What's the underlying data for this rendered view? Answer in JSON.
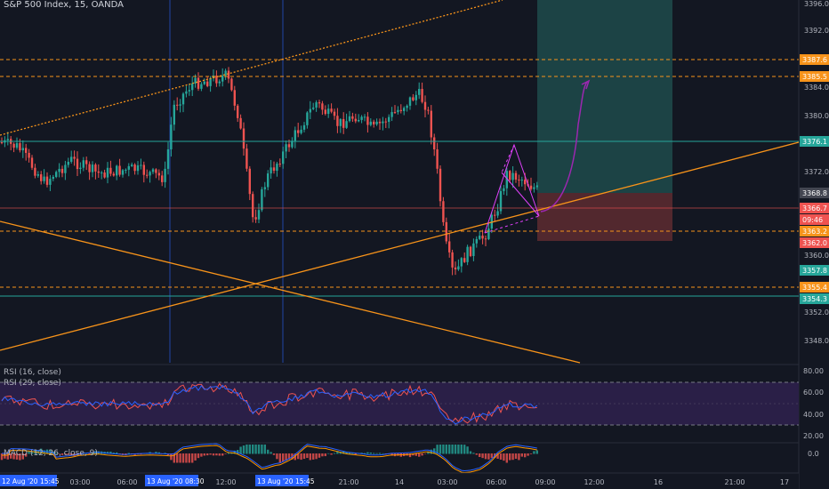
{
  "header": {
    "title": "S&P 500 Index, 15, OANDA"
  },
  "indicators": {
    "rsi16": "RSI (16, close)",
    "rsi29": "RSI (29, close)",
    "macd": "MACD (12, 26, close, 9)"
  },
  "price_axis": {
    "ticks": [
      "3396.0",
      "3392.0",
      "3384.0",
      "3380.0",
      "3372.0",
      "3360.0",
      "3352.0",
      "3348.0"
    ],
    "tags": [
      {
        "value": "3387.6",
        "color": "#f7931a"
      },
      {
        "value": "3385.5",
        "color": "#f7931a"
      },
      {
        "value": "3376.1",
        "color": "#26a69a"
      },
      {
        "value": "3368.8",
        "color": "#434651"
      },
      {
        "value": "3366.7",
        "color": "#ef5350"
      },
      {
        "value": "09:46",
        "color": "#ef5350"
      },
      {
        "value": "3363.2",
        "color": "#f7931a"
      },
      {
        "value": "3362.0",
        "color": "#ef5350"
      },
      {
        "value": "3357.8",
        "color": "#26a69a"
      },
      {
        "value": "3355.4",
        "color": "#f7931a"
      },
      {
        "value": "3354.3",
        "color": "#26a69a"
      }
    ]
  },
  "rsi_axis": {
    "ticks": [
      "80.00",
      "60.00",
      "40.00",
      "20.00"
    ]
  },
  "macd_axis": {
    "ticks": [
      "0.0"
    ]
  },
  "time_axis": {
    "labels": [
      "03:00",
      "06:00",
      "12:00",
      "21:00",
      "14",
      "03:00",
      "06:00",
      "09:00",
      "12:00",
      "16",
      "21:00",
      "17"
    ],
    "highlights": [
      "12 Aug '20  15:45",
      "13 Aug '20  08:30",
      "13 Aug '20  15:45"
    ]
  },
  "colors": {
    "background": "#131722",
    "up": "#26a69a",
    "down": "#ef5350",
    "orange": "#f7931a",
    "teal_line": "#26a69a",
    "target_zone": "#1e4b4b",
    "stop_zone": "#5a2a30",
    "pattern": "#e040fb",
    "rsi_bg": "#2a1f47",
    "rsi_fast": "#2962ff",
    "rsi_slow": "#ef5350",
    "macd_line": "#2962ff",
    "signal_line": "#ff9800"
  }
}
